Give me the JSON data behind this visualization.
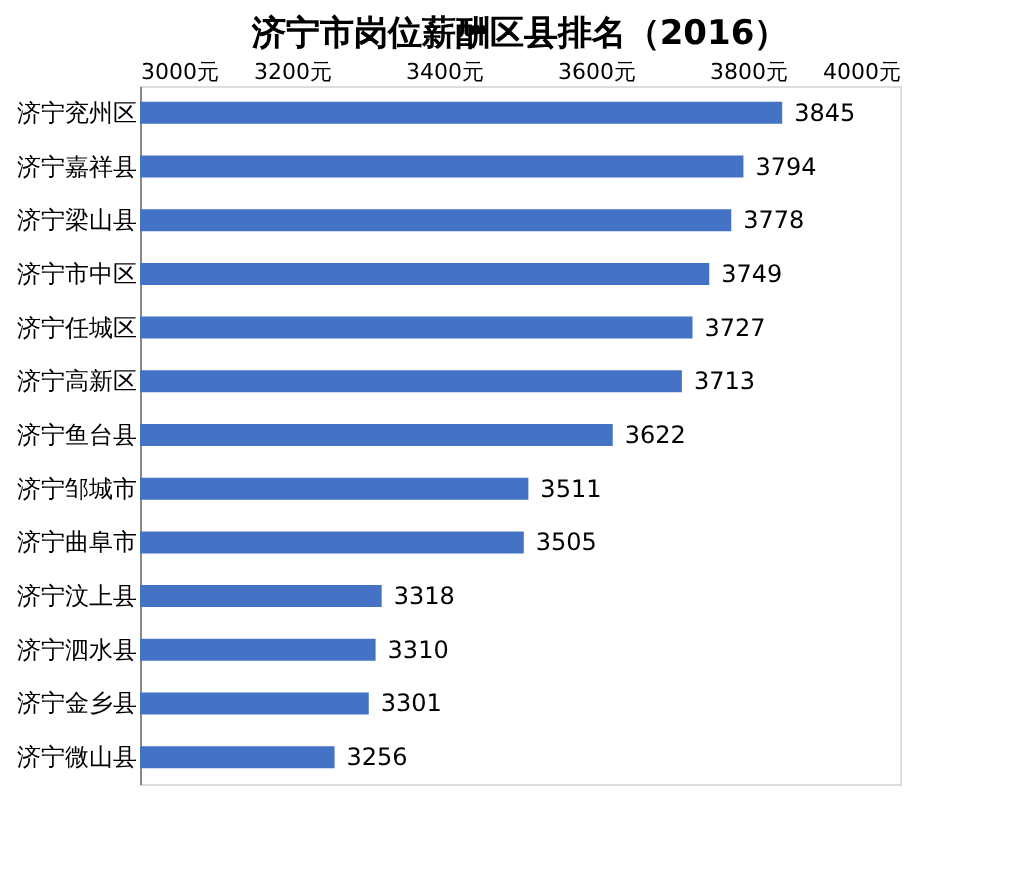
{
  "chart_data": {
    "type": "bar",
    "orientation": "horizontal",
    "title": "济宁市岗位薪酬区县排名（2016）",
    "categories": [
      "济宁兖州区",
      "济宁嘉祥县",
      "济宁梁山县",
      "济宁市中区",
      "济宁任城区",
      "济宁高新区",
      "济宁鱼台县",
      "济宁邹城市",
      "济宁曲阜市",
      "济宁汶上县",
      "济宁泗水县",
      "济宁金乡县",
      "济宁微山县"
    ],
    "values": [
      3845,
      3794,
      3778,
      3749,
      3727,
      3713,
      3622,
      3511,
      3505,
      3318,
      3310,
      3301,
      3256
    ],
    "color": "#4472c4",
    "xlim": [
      3000,
      4000
    ],
    "xticks": [
      {
        "value": 3000,
        "label": "3000元"
      },
      {
        "value": 3200,
        "label": "3200元"
      },
      {
        "value": 3400,
        "label": "3400元"
      },
      {
        "value": 3600,
        "label": "3600元"
      },
      {
        "value": 3800,
        "label": "3800元"
      },
      {
        "value": 4000,
        "label": "4000元"
      }
    ],
    "data_labels": true,
    "grid": false
  }
}
